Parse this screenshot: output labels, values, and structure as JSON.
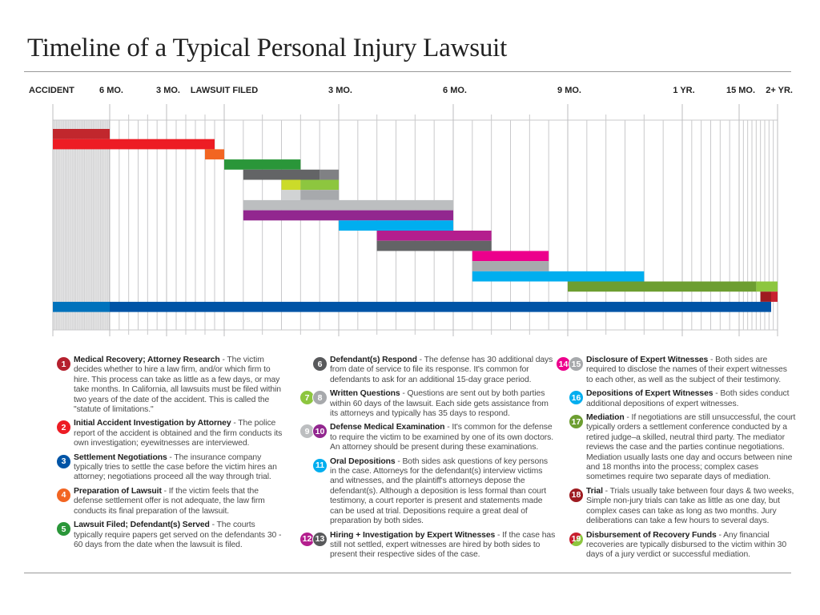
{
  "title": "Timeline of a Typical Personal Injury Lawsuit",
  "chart_data": {
    "type": "gantt",
    "title": "Timeline of a Typical Personal Injury Lawsuit",
    "x_unit": "months relative to lawsuit filing",
    "x_ticks": [
      {
        "label": "ACCIDENT",
        "value": -24
      },
      {
        "label": "6 MO.",
        "value": -6
      },
      {
        "label": "3 MO.",
        "value": -3
      },
      {
        "label": "LAWSUIT FILED",
        "value": 0
      },
      {
        "label": "3 MO.",
        "value": 3
      },
      {
        "label": "6 MO.",
        "value": 6
      },
      {
        "label": "9 MO.",
        "value": 9
      },
      {
        "label": "1 YR.",
        "value": 12
      },
      {
        "label": "15 MO.",
        "value": 15
      },
      {
        "label": "2+ YR.",
        "value": 24
      }
    ],
    "grid": true,
    "rows": [
      {
        "step": "1",
        "segments": [
          {
            "start": -24,
            "end": -6,
            "color": "#c1272d"
          }
        ]
      },
      {
        "step": "2",
        "segments": [
          {
            "start": -24,
            "end": -0.5,
            "color": "#ed1c24"
          }
        ]
      },
      {
        "step": "4",
        "segments": [
          {
            "start": -1,
            "end": 0,
            "color": "#f26522"
          }
        ]
      },
      {
        "step": "5",
        "segments": [
          {
            "start": 0,
            "end": 2,
            "color": "#2a9639"
          }
        ]
      },
      {
        "step": "6",
        "segments": [
          {
            "start": 0.5,
            "end": 2.5,
            "color": "#636466"
          },
          {
            "start": 2.5,
            "end": 3,
            "color": "#808184"
          }
        ]
      },
      {
        "step": "7",
        "segments": [
          {
            "start": 1.5,
            "end": 2,
            "color": "#cbdb2a"
          },
          {
            "start": 2,
            "end": 3,
            "color": "#8dc63f"
          }
        ]
      },
      {
        "step": "8",
        "segments": [
          {
            "start": 1.5,
            "end": 2,
            "color": "#d1d3d4"
          },
          {
            "start": 2,
            "end": 3,
            "color": "#a7a9ac"
          }
        ]
      },
      {
        "step": "9",
        "segments": [
          {
            "start": 0.5,
            "end": 6,
            "color": "#bcbec0"
          }
        ]
      },
      {
        "step": "10",
        "segments": [
          {
            "start": 0.5,
            "end": 6,
            "color": "#92278f"
          }
        ]
      },
      {
        "step": "11",
        "segments": [
          {
            "start": 3,
            "end": 6,
            "color": "#00aeef"
          }
        ]
      },
      {
        "step": "12",
        "segments": [
          {
            "start": 4,
            "end": 7,
            "color": "#b41e8e"
          }
        ]
      },
      {
        "step": "13",
        "segments": [
          {
            "start": 4,
            "end": 7,
            "color": "#636466"
          }
        ]
      },
      {
        "step": "14",
        "segments": [
          {
            "start": 6.5,
            "end": 8.5,
            "color": "#ec008c"
          }
        ]
      },
      {
        "step": "15",
        "segments": [
          {
            "start": 6.5,
            "end": 8.5,
            "color": "#a7a9ac"
          }
        ]
      },
      {
        "step": "16",
        "segments": [
          {
            "start": 6.5,
            "end": 11,
            "color": "#00aeef"
          }
        ]
      },
      {
        "step": "17",
        "segments": [
          {
            "start": 9,
            "end": 19,
            "color": "#6d9e31"
          },
          {
            "start": 19,
            "end": 24,
            "color": "#8dc63f"
          }
        ]
      },
      {
        "step": "18",
        "segments": [
          {
            "start": 20,
            "end": 22.5,
            "color": "#9e1b20"
          },
          {
            "start": 22.5,
            "end": 24,
            "color": "#c8202f"
          }
        ]
      },
      {
        "step": "3",
        "segments": [
          {
            "start": -24,
            "end": -6,
            "color": "#0072bc"
          },
          {
            "start": -6,
            "end": 22.5,
            "color": "#0054a6"
          }
        ]
      }
    ]
  },
  "legend": [
    {
      "badges": [
        {
          "n": "1",
          "color": "#b5202e"
        }
      ],
      "title": "Medical Recovery; Attorney Research",
      "text": " - The victim decides whether to hire a law firm, and/or which firm to hire. This process can take as little as a few days, or may take months. In California, all lawsuits must be filed within two years of the date of the accident. This is called the \"statute of limitations.\""
    },
    {
      "badges": [
        {
          "n": "2",
          "color": "#ed1c24"
        }
      ],
      "title": "Initial Accident Investigation by Attorney",
      "text": " - The police report of the accident is obtained and the firm conducts its own investigation; eyewitnesses are interviewed."
    },
    {
      "badges": [
        {
          "n": "3",
          "color": "#0054a6"
        }
      ],
      "title": "Settlement Negotiations",
      "text": " - The insurance company typically tries to settle the case before the victim hires an attorney; negotiations proceed all the way through trial."
    },
    {
      "badges": [
        {
          "n": "4",
          "color": "#f26522"
        }
      ],
      "title": "Preparation of Lawsuit",
      "text": " - If the victim feels that the defense settlement offer is not adequate, the law firm conducts its final preparation of the lawsuit."
    },
    {
      "badges": [
        {
          "n": "5",
          "color": "#2a9639"
        }
      ],
      "title": "Lawsuit Filed; Defendant(s) Served",
      "text": " - The courts typically require papers get served on the defendants 30 - 60 days from the date when the lawsuit is filed."
    },
    {
      "badges": [
        {
          "n": "6",
          "color": "#58595b"
        }
      ],
      "title": "Defendant(s) Respond",
      "text": " - The defense has 30 additional days from date of service to file its response. It's common for defendants to ask for an additional 15-day grace period."
    },
    {
      "badges": [
        {
          "n": "7",
          "color": "#8dc63f"
        },
        {
          "n": "8",
          "color": "#a7a9ac"
        }
      ],
      "title": "Written Questions",
      "text": " - Questions are sent out by both parties within 60 days of the lawsuit. Each side gets assistance from its attorneys and typically has 35 days to respond."
    },
    {
      "badges": [
        {
          "n": "9",
          "color": "#bcbec0"
        },
        {
          "n": "10",
          "color": "#92278f"
        }
      ],
      "title": "Defense Medical Examination",
      "text": " - It's common for the defense to require the victim to be examined by one of its own doctors. An attorney should be present during these examinations."
    },
    {
      "badges": [
        {
          "n": "11",
          "color": "#00aeef"
        }
      ],
      "title": "Oral Depositions",
      "text": " - Both sides ask questions of key persons in the case. Attorneys for the defendant(s) interview victims and witnesses, and the plaintiff's attorneys depose the defendant(s). Although a deposition is less formal than court testimony, a court reporter is present and statements made can be used at trial. Depositions require a great deal of preparation by both sides."
    },
    {
      "badges": [
        {
          "n": "12",
          "color": "#b41e8e"
        },
        {
          "n": "13",
          "color": "#58595b"
        }
      ],
      "title": "Hiring + Investigation by Expert Witnesses",
      "text": " - If the case has still not settled, expert witnesses are hired by both sides to present their respective sides of the case."
    },
    {
      "badges": [
        {
          "n": "14",
          "color": "#ec008c"
        },
        {
          "n": "15",
          "color": "#a7a9ac"
        }
      ],
      "title": "Disclosure of Expert Witnesses",
      "text": " - Both sides are required to disclose the names of their expert witnesses to each other, as well as the subject of their testimony."
    },
    {
      "badges": [
        {
          "n": "16",
          "color": "#00aeef"
        }
      ],
      "title": "Depositions of Expert Witnesses",
      "text": " - Both sides conduct additional depositions of expert witnesses."
    },
    {
      "badges": [
        {
          "n": "17",
          "color": "#6d9e31"
        }
      ],
      "title": "Mediation",
      "text": " - If negotiations are still unsuccessful, the court typically orders a settlement conference conducted by a retired judge–a skilled, neutral third party. The mediator reviews the case and the parties continue negotiations. Mediation usually lasts one day and occurs between nine and 18 months into the process; complex cases sometimes require two separate days of mediation."
    },
    {
      "badges": [
        {
          "n": "18",
          "color": "#9e1b20"
        }
      ],
      "title": "Trial",
      "text": " - Trials usually take between four days & two weeks, Simple non-jury trials can take as little as one day, but complex cases can take as long as two months. Jury deliberations can take a few hours to several days."
    },
    {
      "badges": [
        {
          "n": "19",
          "color": "#c8202f",
          "color2": "#8dc63f"
        }
      ],
      "title": "Disbursement of Recovery Funds",
      "text": " - Any financial recoveries are typically disbursed to the victim within 30 days of a jury verdict or successful mediation."
    }
  ]
}
